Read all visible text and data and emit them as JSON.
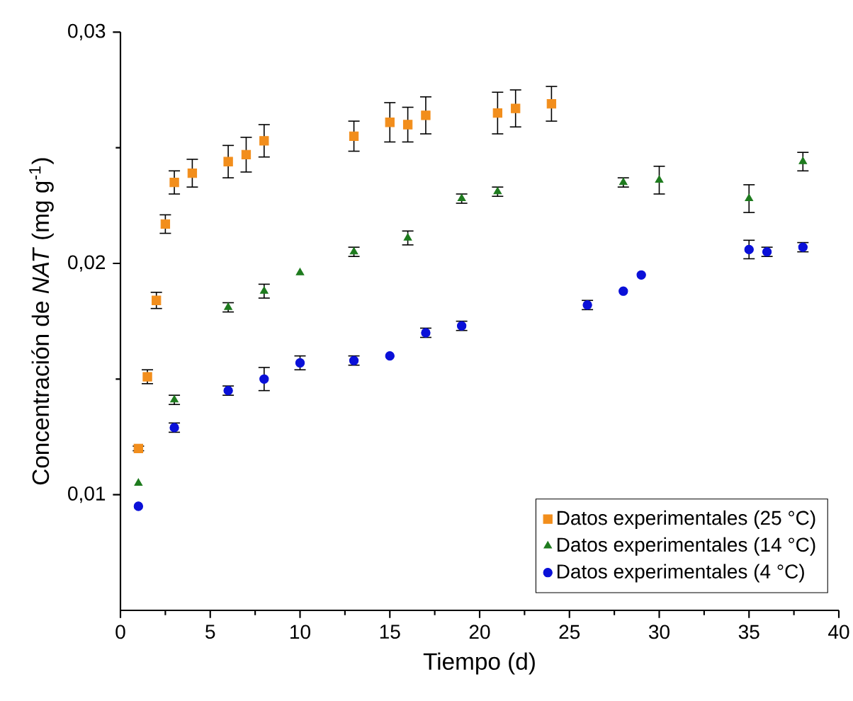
{
  "chart_data": {
    "type": "scatter",
    "xlabel": "Tiempo (d)",
    "ylabel": "Concentración de *NAT* (mg g$^{-1}$)",
    "xlim": [
      0,
      40
    ],
    "xticks": [
      0,
      5,
      10,
      15,
      20,
      25,
      30,
      35,
      40
    ],
    "ylim": [
      0.005,
      0.03
    ],
    "yticks": [
      {
        "value": 0.01,
        "label": "0,01"
      },
      {
        "value": 0.02,
        "label": "0,02"
      },
      {
        "value": 0.03,
        "label": "0,03"
      }
    ],
    "grid": false,
    "legend": "bottom right",
    "series": [
      {
        "name": "Datos experimentales (25 °C)",
        "color": "#f28e1c",
        "marker": "square",
        "x": [
          1,
          1.5,
          2,
          2.5,
          3,
          4,
          6,
          7,
          8,
          13,
          15,
          16,
          17,
          21,
          22,
          24
        ],
        "values": [
          0.012,
          0.0151,
          0.0184,
          0.0217,
          0.0235,
          0.0239,
          0.0244,
          0.0247,
          0.0253,
          0.0255,
          0.0261,
          0.026,
          0.0264,
          0.0265,
          0.0267,
          0.0269
        ],
        "errors": [
          0.0001,
          0.0003,
          0.00035,
          0.0004,
          0.0005,
          0.0006,
          0.0007,
          0.00075,
          0.0007,
          0.00065,
          0.00085,
          0.00075,
          0.0008,
          0.0009,
          0.0008,
          0.00075
        ]
      },
      {
        "name": "Datos experimentales (14 °C)",
        "color": "#1e7b1e",
        "marker": "triangle",
        "x": [
          1,
          3,
          6,
          8,
          10,
          13,
          16,
          19,
          21,
          28,
          30,
          35,
          38
        ],
        "values": [
          0.0105,
          0.0141,
          0.0181,
          0.0188,
          0.0196,
          0.0205,
          0.0211,
          0.0228,
          0.0231,
          0.0235,
          0.0236,
          0.0228,
          0.0244
        ],
        "errors": [
          null,
          0.0002,
          0.0002,
          0.0003,
          null,
          0.0002,
          0.0003,
          0.0002,
          0.0002,
          0.0002,
          0.0006,
          0.0006,
          0.0004
        ]
      },
      {
        "name": "Datos experimentales (4 °C)",
        "color": "#0a10d8",
        "marker": "circle",
        "x": [
          1,
          3,
          6,
          8,
          10,
          13,
          15,
          17,
          19,
          26,
          28,
          29,
          35,
          36,
          38
        ],
        "values": [
          0.0095,
          0.0129,
          0.0145,
          0.015,
          0.0157,
          0.0158,
          0.016,
          0.017,
          0.0173,
          0.0182,
          0.0188,
          0.0195,
          0.0206,
          0.0205,
          0.0207
        ],
        "errors": [
          null,
          0.0002,
          0.0002,
          0.0005,
          0.0003,
          0.0002,
          null,
          0.0002,
          0.0002,
          0.0002,
          null,
          null,
          0.0004,
          0.0002,
          0.0002
        ]
      }
    ]
  }
}
